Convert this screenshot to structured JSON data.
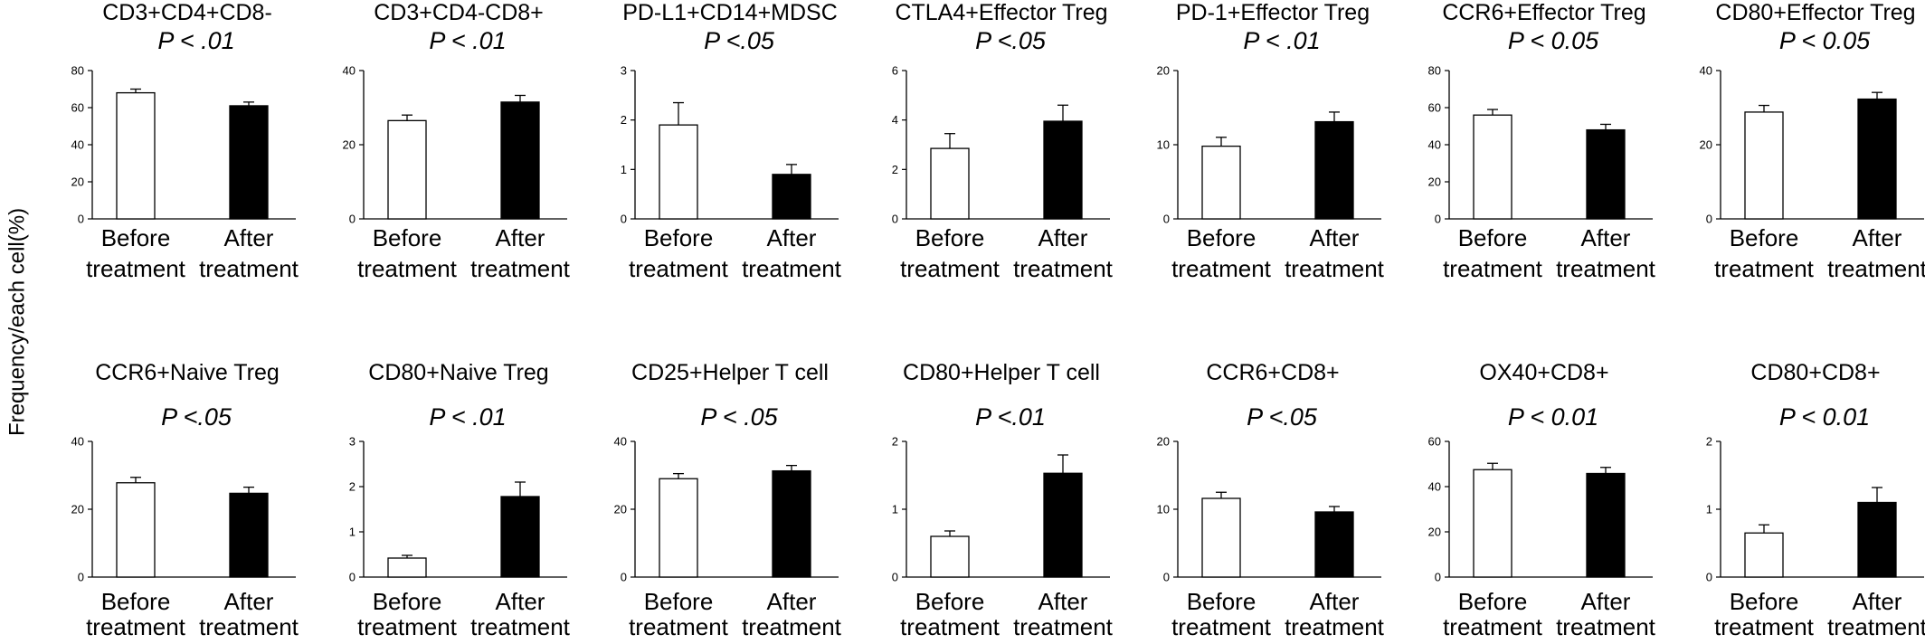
{
  "figure": {
    "shared_ylabel": "Frequency/each cell(%)"
  },
  "chart_data": [
    {
      "type": "bar",
      "title": "CD3+CD4+CD8-",
      "pvalue": "P < .01",
      "categories": [
        "Before treatment",
        "After treatment"
      ],
      "values": [
        68,
        61
      ],
      "errors": [
        2,
        2
      ],
      "ylim": [
        0,
        80
      ],
      "yticks": [
        0,
        20,
        40,
        60,
        80
      ],
      "colors": [
        "#ffffff",
        "#000000"
      ]
    },
    {
      "type": "bar",
      "title": "CD3+CD4-CD8+",
      "pvalue": "P < .01",
      "categories": [
        "Before treatment",
        "After treatment"
      ],
      "values": [
        26.5,
        31.5
      ],
      "errors": [
        1.5,
        1.8
      ],
      "ylim": [
        0,
        40
      ],
      "yticks": [
        0,
        20,
        40
      ],
      "colors": [
        "#ffffff",
        "#000000"
      ]
    },
    {
      "type": "bar",
      "title": "PD-L1+CD14+MDSC",
      "pvalue": "P <.05",
      "categories": [
        "Before treatment",
        "After treatment"
      ],
      "values": [
        1.9,
        0.9
      ],
      "errors": [
        0.45,
        0.2
      ],
      "ylim": [
        0,
        3
      ],
      "yticks": [
        0,
        1,
        2,
        3
      ],
      "colors": [
        "#ffffff",
        "#000000"
      ]
    },
    {
      "type": "bar",
      "title": "CTLA4+Effector Treg",
      "pvalue": "P <.05",
      "categories": [
        "Before treatment",
        "After treatment"
      ],
      "values": [
        2.85,
        3.95
      ],
      "errors": [
        0.6,
        0.65
      ],
      "ylim": [
        0,
        6
      ],
      "yticks": [
        0,
        2,
        4,
        6
      ],
      "colors": [
        "#ffffff",
        "#000000"
      ]
    },
    {
      "type": "bar",
      "title": "PD-1+Effector Treg",
      "pvalue": "P < .01",
      "categories": [
        "Before treatment",
        "After treatment"
      ],
      "values": [
        9.8,
        13.1
      ],
      "errors": [
        1.2,
        1.3
      ],
      "ylim": [
        0,
        20
      ],
      "yticks": [
        0,
        10,
        20
      ],
      "colors": [
        "#ffffff",
        "#000000"
      ]
    },
    {
      "type": "bar",
      "title": "CCR6+Effector Treg",
      "pvalue": "P < 0.05",
      "categories": [
        "Before treatment",
        "After treatment"
      ],
      "values": [
        56,
        48
      ],
      "errors": [
        3,
        3
      ],
      "ylim": [
        0,
        80
      ],
      "yticks": [
        0,
        20,
        40,
        60,
        80
      ],
      "colors": [
        "#ffffff",
        "#000000"
      ]
    },
    {
      "type": "bar",
      "title": "CD80+Effector Treg",
      "pvalue": "P < 0.05",
      "categories": [
        "Before treatment",
        "After treatment"
      ],
      "values": [
        28.8,
        32.3
      ],
      "errors": [
        1.8,
        1.8
      ],
      "ylim": [
        0,
        40
      ],
      "yticks": [
        0,
        20,
        40
      ],
      "colors": [
        "#ffffff",
        "#000000"
      ]
    },
    {
      "type": "bar",
      "title": "CCR6+Naive Treg",
      "pvalue": "P <.05",
      "categories": [
        "Before treatment",
        "After treatment"
      ],
      "values": [
        27.8,
        24.7
      ],
      "errors": [
        1.6,
        1.8
      ],
      "ylim": [
        0,
        40
      ],
      "yticks": [
        0,
        20,
        40
      ],
      "colors": [
        "#ffffff",
        "#000000"
      ]
    },
    {
      "type": "bar",
      "title": "CD80+Naive Treg",
      "pvalue": "P < .01",
      "categories": [
        "Before treatment",
        "After treatment"
      ],
      "values": [
        0.42,
        1.78
      ],
      "errors": [
        0.06,
        0.32
      ],
      "ylim": [
        0,
        3
      ],
      "yticks": [
        0,
        1,
        2,
        3
      ],
      "colors": [
        "#ffffff",
        "#000000"
      ]
    },
    {
      "type": "bar",
      "title": "CD25+Helper T cell",
      "pvalue": "P < .05",
      "categories": [
        "Before treatment",
        "After treatment"
      ],
      "values": [
        29,
        31.3
      ],
      "errors": [
        1.5,
        1.6
      ],
      "ylim": [
        0,
        40
      ],
      "yticks": [
        0,
        20,
        40
      ],
      "colors": [
        "#ffffff",
        "#000000"
      ]
    },
    {
      "type": "bar",
      "title": "CD80+Helper T cell",
      "pvalue": "P <.01",
      "categories": [
        "Before treatment",
        "After treatment"
      ],
      "values": [
        0.6,
        1.53
      ],
      "errors": [
        0.08,
        0.27
      ],
      "ylim": [
        0,
        2
      ],
      "yticks": [
        0,
        1,
        2
      ],
      "colors": [
        "#ffffff",
        "#000000"
      ]
    },
    {
      "type": "bar",
      "title": "CCR6+CD8+",
      "pvalue": "P <.05",
      "categories": [
        "Before treatment",
        "After treatment"
      ],
      "values": [
        11.6,
        9.6
      ],
      "errors": [
        0.9,
        0.8
      ],
      "ylim": [
        0,
        20
      ],
      "yticks": [
        0,
        10,
        20
      ],
      "colors": [
        "#ffffff",
        "#000000"
      ]
    },
    {
      "type": "bar",
      "title": "OX40+CD8+",
      "pvalue": "P < 0.01",
      "categories": [
        "Before treatment",
        "After treatment"
      ],
      "values": [
        47.5,
        45.8
      ],
      "errors": [
        2.8,
        2.7
      ],
      "ylim": [
        0,
        60
      ],
      "yticks": [
        0,
        20,
        40,
        60
      ],
      "colors": [
        "#ffffff",
        "#000000"
      ]
    },
    {
      "type": "bar",
      "title": "CD80+CD8+",
      "pvalue": "P < 0.01",
      "categories": [
        "Before treatment",
        "After treatment"
      ],
      "values": [
        0.65,
        1.1
      ],
      "errors": [
        0.12,
        0.22
      ],
      "ylim": [
        0,
        2
      ],
      "yticks": [
        0,
        1,
        2
      ],
      "colors": [
        "#ffffff",
        "#000000"
      ]
    }
  ]
}
